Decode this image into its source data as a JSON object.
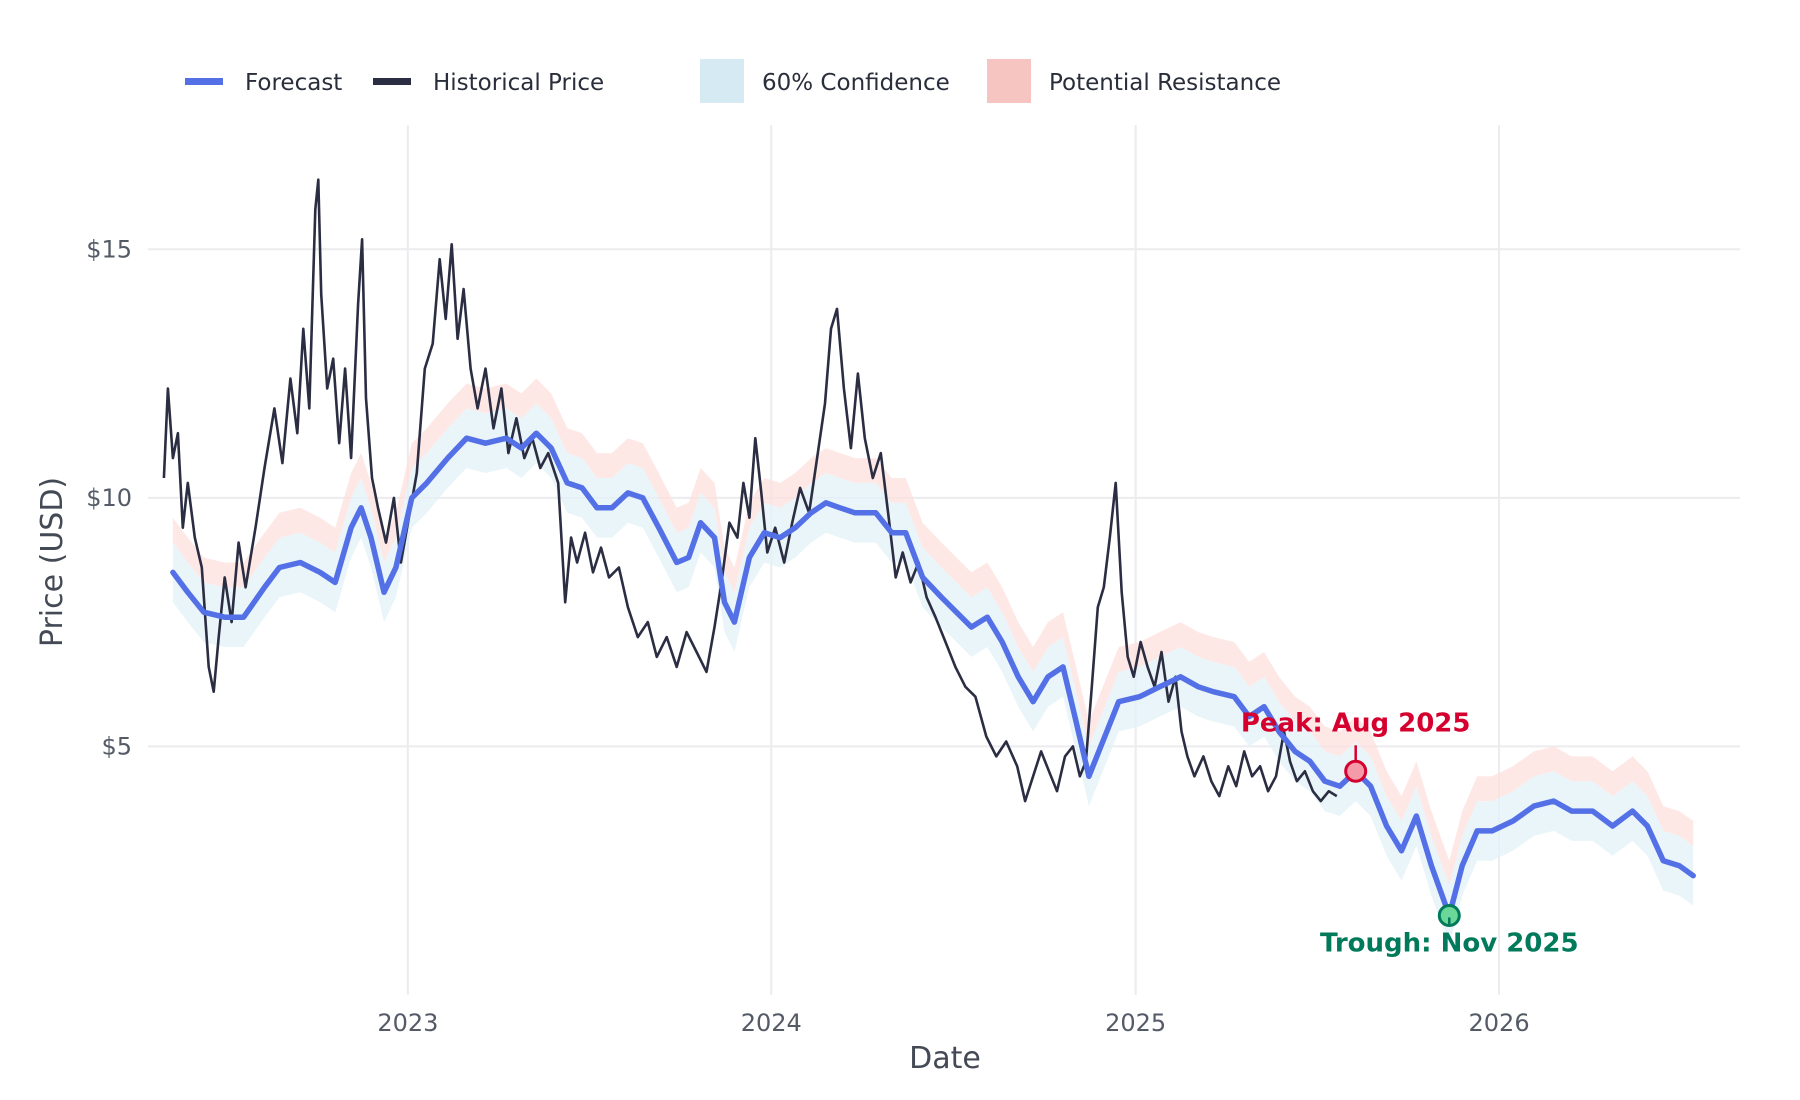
{
  "chart_data": {
    "type": "line",
    "title": "",
    "xlabel": "Date",
    "ylabel": "Price (USD)",
    "x_range": [
      "2022-04-15",
      "2026-08-31"
    ],
    "y_range": [
      0,
      17.5
    ],
    "grid": true,
    "legend_placement": "top",
    "x_ticks": [
      {
        "date": "2023-01-01",
        "label": "2023"
      },
      {
        "date": "2024-01-01",
        "label": "2024"
      },
      {
        "date": "2025-01-01",
        "label": "2025"
      },
      {
        "date": "2026-01-01",
        "label": "2026"
      }
    ],
    "y_ticks": [
      {
        "value": 5,
        "label": "$5"
      },
      {
        "value": 10,
        "label": "$10"
      },
      {
        "value": 15,
        "label": "$15"
      }
    ],
    "legend": [
      {
        "label": "Forecast",
        "kind": "line",
        "color": "#5470e6"
      },
      {
        "label": "Historical Price",
        "kind": "line",
        "color": "#2b2d42"
      },
      {
        "label": "60% Confidence",
        "kind": "box",
        "color": "#d5eaf2"
      },
      {
        "label": "Potential Resistance",
        "kind": "box",
        "color": "#f6c4c1"
      }
    ],
    "series": [
      {
        "name": "Historical Price",
        "color": "#2b2d42",
        "points": [
          [
            "2022-05-01",
            10.4
          ],
          [
            "2022-05-05",
            12.2
          ],
          [
            "2022-05-10",
            10.8
          ],
          [
            "2022-05-15",
            11.3
          ],
          [
            "2022-05-20",
            9.4
          ],
          [
            "2022-05-25",
            10.3
          ],
          [
            "2022-06-01",
            9.2
          ],
          [
            "2022-06-08",
            8.6
          ],
          [
            "2022-06-15",
            6.6
          ],
          [
            "2022-06-20",
            6.1
          ],
          [
            "2022-06-25",
            7.2
          ],
          [
            "2022-07-01",
            8.4
          ],
          [
            "2022-07-08",
            7.5
          ],
          [
            "2022-07-15",
            9.1
          ],
          [
            "2022-07-22",
            8.2
          ],
          [
            "2022-08-01",
            9.4
          ],
          [
            "2022-08-10",
            10.6
          ],
          [
            "2022-08-20",
            11.8
          ],
          [
            "2022-08-28",
            10.7
          ],
          [
            "2022-09-05",
            12.4
          ],
          [
            "2022-09-12",
            11.3
          ],
          [
            "2022-09-18",
            13.4
          ],
          [
            "2022-09-24",
            11.8
          ],
          [
            "2022-09-30",
            15.8
          ],
          [
            "2022-10-03",
            16.4
          ],
          [
            "2022-10-06",
            14.1
          ],
          [
            "2022-10-12",
            12.2
          ],
          [
            "2022-10-18",
            12.8
          ],
          [
            "2022-10-24",
            11.1
          ],
          [
            "2022-10-30",
            12.6
          ],
          [
            "2022-11-05",
            10.8
          ],
          [
            "2022-11-12",
            13.9
          ],
          [
            "2022-11-16",
            15.2
          ],
          [
            "2022-11-20",
            12.0
          ],
          [
            "2022-11-26",
            10.4
          ],
          [
            "2022-12-02",
            9.8
          ],
          [
            "2022-12-10",
            9.1
          ],
          [
            "2022-12-18",
            10.0
          ],
          [
            "2022-12-25",
            8.7
          ],
          [
            "2023-01-02",
            9.6
          ],
          [
            "2023-01-10",
            10.5
          ],
          [
            "2023-01-18",
            12.6
          ],
          [
            "2023-01-26",
            13.1
          ],
          [
            "2023-02-02",
            14.8
          ],
          [
            "2023-02-08",
            13.6
          ],
          [
            "2023-02-14",
            15.1
          ],
          [
            "2023-02-20",
            13.2
          ],
          [
            "2023-02-26",
            14.2
          ],
          [
            "2023-03-05",
            12.6
          ],
          [
            "2023-03-12",
            11.8
          ],
          [
            "2023-03-20",
            12.6
          ],
          [
            "2023-03-28",
            11.4
          ],
          [
            "2023-04-05",
            12.2
          ],
          [
            "2023-04-12",
            10.9
          ],
          [
            "2023-04-20",
            11.6
          ],
          [
            "2023-04-28",
            10.8
          ],
          [
            "2023-05-06",
            11.2
          ],
          [
            "2023-05-14",
            10.6
          ],
          [
            "2023-05-22",
            10.9
          ],
          [
            "2023-06-01",
            10.3
          ],
          [
            "2023-06-08",
            7.9
          ],
          [
            "2023-06-14",
            9.2
          ],
          [
            "2023-06-20",
            8.7
          ],
          [
            "2023-06-28",
            9.3
          ],
          [
            "2023-07-06",
            8.5
          ],
          [
            "2023-07-14",
            9.0
          ],
          [
            "2023-07-22",
            8.4
          ],
          [
            "2023-08-01",
            8.6
          ],
          [
            "2023-08-10",
            7.8
          ],
          [
            "2023-08-20",
            7.2
          ],
          [
            "2023-08-30",
            7.5
          ],
          [
            "2023-09-08",
            6.8
          ],
          [
            "2023-09-18",
            7.2
          ],
          [
            "2023-09-28",
            6.6
          ],
          [
            "2023-10-08",
            7.3
          ],
          [
            "2023-10-18",
            6.9
          ],
          [
            "2023-10-28",
            6.5
          ],
          [
            "2023-11-05",
            7.4
          ],
          [
            "2023-11-12",
            8.3
          ],
          [
            "2023-11-20",
            9.5
          ],
          [
            "2023-11-28",
            9.2
          ],
          [
            "2023-12-04",
            10.3
          ],
          [
            "2023-12-10",
            9.6
          ],
          [
            "2023-12-16",
            11.2
          ],
          [
            "2023-12-22",
            10.1
          ],
          [
            "2023-12-28",
            8.9
          ],
          [
            "2024-01-05",
            9.4
          ],
          [
            "2024-01-14",
            8.7
          ],
          [
            "2024-01-22",
            9.5
          ],
          [
            "2024-01-30",
            10.2
          ],
          [
            "2024-02-08",
            9.7
          ],
          [
            "2024-02-16",
            10.8
          ],
          [
            "2024-02-24",
            11.9
          ],
          [
            "2024-03-01",
            13.4
          ],
          [
            "2024-03-07",
            13.8
          ],
          [
            "2024-03-14",
            12.2
          ],
          [
            "2024-03-21",
            11.0
          ],
          [
            "2024-03-28",
            12.5
          ],
          [
            "2024-04-04",
            11.2
          ],
          [
            "2024-04-12",
            10.4
          ],
          [
            "2024-04-20",
            10.9
          ],
          [
            "2024-04-28",
            9.6
          ],
          [
            "2024-05-05",
            8.4
          ],
          [
            "2024-05-12",
            8.9
          ],
          [
            "2024-05-20",
            8.3
          ],
          [
            "2024-05-28",
            8.7
          ],
          [
            "2024-06-05",
            8.0
          ],
          [
            "2024-06-14",
            7.6
          ],
          [
            "2024-06-24",
            7.1
          ],
          [
            "2024-07-04",
            6.6
          ],
          [
            "2024-07-14",
            6.2
          ],
          [
            "2024-07-24",
            6.0
          ],
          [
            "2024-08-04",
            5.2
          ],
          [
            "2024-08-14",
            4.8
          ],
          [
            "2024-08-24",
            5.1
          ],
          [
            "2024-09-04",
            4.6
          ],
          [
            "2024-09-12",
            3.9
          ],
          [
            "2024-09-20",
            4.4
          ],
          [
            "2024-09-28",
            4.9
          ],
          [
            "2024-10-06",
            4.5
          ],
          [
            "2024-10-14",
            4.1
          ],
          [
            "2024-10-22",
            4.8
          ],
          [
            "2024-10-30",
            5.0
          ],
          [
            "2024-11-06",
            4.4
          ],
          [
            "2024-11-12",
            4.7
          ],
          [
            "2024-11-18",
            6.2
          ],
          [
            "2024-11-24",
            7.8
          ],
          [
            "2024-11-30",
            8.2
          ],
          [
            "2024-12-06",
            9.2
          ],
          [
            "2024-12-12",
            10.3
          ],
          [
            "2024-12-18",
            8.1
          ],
          [
            "2024-12-24",
            6.8
          ],
          [
            "2024-12-30",
            6.4
          ],
          [
            "2025-01-06",
            7.1
          ],
          [
            "2025-01-13",
            6.6
          ],
          [
            "2025-01-20",
            6.2
          ],
          [
            "2025-01-27",
            6.9
          ],
          [
            "2025-02-03",
            5.9
          ],
          [
            "2025-02-10",
            6.4
          ],
          [
            "2025-02-16",
            5.3
          ],
          [
            "2025-02-22",
            4.8
          ],
          [
            "2025-03-01",
            4.4
          ],
          [
            "2025-03-10",
            4.8
          ],
          [
            "2025-03-18",
            4.3
          ],
          [
            "2025-03-26",
            4.0
          ],
          [
            "2025-04-04",
            4.6
          ],
          [
            "2025-04-12",
            4.2
          ],
          [
            "2025-04-20",
            4.9
          ],
          [
            "2025-04-28",
            4.4
          ],
          [
            "2025-05-06",
            4.6
          ],
          [
            "2025-05-14",
            4.1
          ],
          [
            "2025-05-22",
            4.4
          ],
          [
            "2025-05-30",
            5.3
          ],
          [
            "2025-06-05",
            4.7
          ],
          [
            "2025-06-12",
            4.3
          ],
          [
            "2025-06-20",
            4.5
          ],
          [
            "2025-06-28",
            4.1
          ],
          [
            "2025-07-06",
            3.9
          ],
          [
            "2025-07-14",
            4.1
          ],
          [
            "2025-07-22",
            4.0
          ]
        ]
      },
      {
        "name": "Forecast",
        "color": "#5470e6",
        "points": [
          [
            "2022-05-10",
            8.5
          ],
          [
            "2022-05-25",
            8.1
          ],
          [
            "2022-06-10",
            7.7
          ],
          [
            "2022-07-01",
            7.6
          ],
          [
            "2022-07-20",
            7.6
          ],
          [
            "2022-08-10",
            8.2
          ],
          [
            "2022-08-25",
            8.6
          ],
          [
            "2022-09-15",
            8.7
          ],
          [
            "2022-10-05",
            8.5
          ],
          [
            "2022-10-20",
            8.3
          ],
          [
            "2022-11-05",
            9.4
          ],
          [
            "2022-11-15",
            9.8
          ],
          [
            "2022-11-25",
            9.2
          ],
          [
            "2022-12-08",
            8.1
          ],
          [
            "2022-12-20",
            8.6
          ],
          [
            "2023-01-05",
            10.0
          ],
          [
            "2023-01-20",
            10.3
          ],
          [
            "2023-02-10",
            10.8
          ],
          [
            "2023-03-01",
            11.2
          ],
          [
            "2023-03-20",
            11.1
          ],
          [
            "2023-04-10",
            11.2
          ],
          [
            "2023-04-25",
            11.0
          ],
          [
            "2023-05-10",
            11.3
          ],
          [
            "2023-05-25",
            11.0
          ],
          [
            "2023-06-10",
            10.3
          ],
          [
            "2023-06-25",
            10.2
          ],
          [
            "2023-07-10",
            9.8
          ],
          [
            "2023-07-25",
            9.8
          ],
          [
            "2023-08-10",
            10.1
          ],
          [
            "2023-08-25",
            10.0
          ],
          [
            "2023-09-10",
            9.4
          ],
          [
            "2023-09-28",
            8.7
          ],
          [
            "2023-10-10",
            8.8
          ],
          [
            "2023-10-22",
            9.5
          ],
          [
            "2023-11-05",
            9.2
          ],
          [
            "2023-11-15",
            7.9
          ],
          [
            "2023-11-25",
            7.5
          ],
          [
            "2023-12-10",
            8.8
          ],
          [
            "2023-12-25",
            9.3
          ],
          [
            "2024-01-10",
            9.2
          ],
          [
            "2024-01-25",
            9.4
          ],
          [
            "2024-02-10",
            9.7
          ],
          [
            "2024-02-25",
            9.9
          ],
          [
            "2024-03-10",
            9.8
          ],
          [
            "2024-03-25",
            9.7
          ],
          [
            "2024-04-15",
            9.7
          ],
          [
            "2024-05-01",
            9.3
          ],
          [
            "2024-05-15",
            9.3
          ],
          [
            "2024-06-01",
            8.4
          ],
          [
            "2024-06-20",
            8.0
          ],
          [
            "2024-07-05",
            7.7
          ],
          [
            "2024-07-20",
            7.4
          ],
          [
            "2024-08-05",
            7.6
          ],
          [
            "2024-08-20",
            7.1
          ],
          [
            "2024-09-05",
            6.4
          ],
          [
            "2024-09-20",
            5.9
          ],
          [
            "2024-10-05",
            6.4
          ],
          [
            "2024-10-20",
            6.6
          ],
          [
            "2024-11-01",
            5.6
          ],
          [
            "2024-11-15",
            4.4
          ],
          [
            "2024-12-01",
            5.2
          ],
          [
            "2024-12-15",
            5.9
          ],
          [
            "2025-01-05",
            6.0
          ],
          [
            "2025-01-25",
            6.2
          ],
          [
            "2025-02-15",
            6.4
          ],
          [
            "2025-03-05",
            6.2
          ],
          [
            "2025-03-20",
            6.1
          ],
          [
            "2025-04-10",
            6.0
          ],
          [
            "2025-04-25",
            5.6
          ],
          [
            "2025-05-10",
            5.8
          ],
          [
            "2025-05-25",
            5.3
          ],
          [
            "2025-06-10",
            4.9
          ],
          [
            "2025-06-25",
            4.7
          ],
          [
            "2025-07-10",
            4.3
          ],
          [
            "2025-07-25",
            4.2
          ],
          [
            "2025-08-10",
            4.5
          ],
          [
            "2025-08-25",
            4.2
          ],
          [
            "2025-09-10",
            3.4
          ],
          [
            "2025-09-25",
            2.9
          ],
          [
            "2025-10-10",
            3.6
          ],
          [
            "2025-10-25",
            2.6
          ],
          [
            "2025-11-12",
            1.6
          ],
          [
            "2025-11-25",
            2.6
          ],
          [
            "2025-12-10",
            3.3
          ],
          [
            "2025-12-25",
            3.3
          ],
          [
            "2026-01-15",
            3.5
          ],
          [
            "2026-02-05",
            3.8
          ],
          [
            "2026-02-25",
            3.9
          ],
          [
            "2026-03-15",
            3.7
          ],
          [
            "2026-04-05",
            3.7
          ],
          [
            "2026-04-25",
            3.4
          ],
          [
            "2026-05-15",
            3.7
          ],
          [
            "2026-05-30",
            3.4
          ],
          [
            "2026-06-15",
            2.7
          ],
          [
            "2026-07-01",
            2.6
          ],
          [
            "2026-07-15",
            2.4
          ]
        ],
        "confidence_band": {
          "label": "60% Confidence",
          "color": "#e3f1f8",
          "lower_offset": 0.6,
          "upper_offset": 0.6
        },
        "resistance_band": {
          "label": "Potential Resistance",
          "color": "#fde0de",
          "lower_offset": 0.6,
          "upper_offset": 1.1
        }
      }
    ],
    "annotations": [
      {
        "label": "Peak: Aug 2025",
        "date": "2025-08-10",
        "value": 4.5,
        "color": "#d6002f",
        "fill": "#f59aa8",
        "position": "above"
      },
      {
        "label": "Trough: Nov 2025",
        "date": "2025-11-12",
        "value": 1.6,
        "color": "#007a5a",
        "fill": "#6bd89a",
        "position": "below"
      }
    ]
  }
}
